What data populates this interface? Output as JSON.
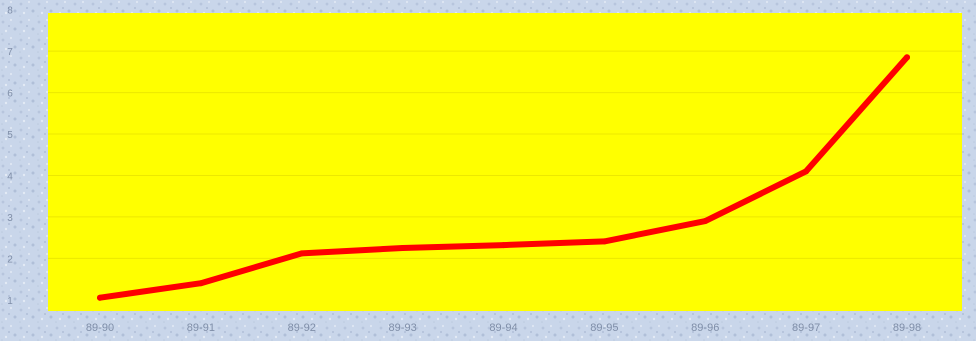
{
  "colors": {
    "background": "#c9d6ea",
    "plot_area": "#ffff00",
    "gridline": "#ece800",
    "line": "#ff0000",
    "tick_label": "#7f8ea8"
  },
  "chart_data": {
    "type": "line",
    "title": "",
    "xlabel": "",
    "ylabel": "",
    "categories": [
      "89-90",
      "89-91",
      "89-92",
      "89-93",
      "89-94",
      "89-95",
      "89-96",
      "89-97",
      "89-98"
    ],
    "series": [
      {
        "values": [
          1.05,
          1.4,
          2.12,
          2.25,
          2.32,
          2.41,
          2.9,
          4.1,
          6.85
        ]
      }
    ],
    "ylim": [
      1,
      8
    ],
    "yticks": [
      1,
      2,
      3,
      4,
      5,
      6,
      7,
      8
    ],
    "grid": true,
    "legend": "none"
  }
}
